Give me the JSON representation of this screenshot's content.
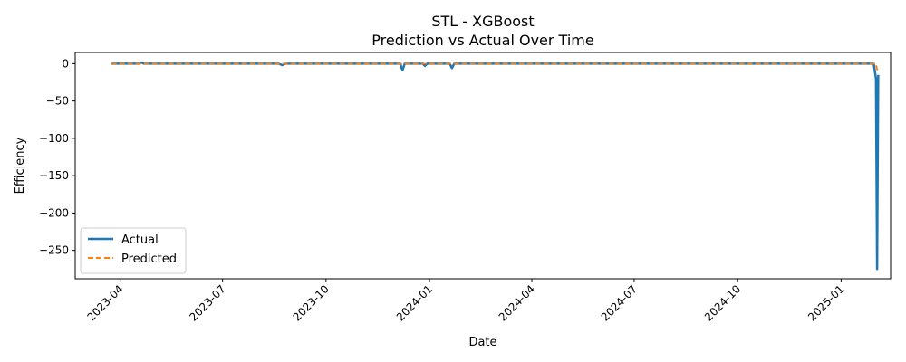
{
  "chart_data": {
    "type": "line",
    "title": "STL - XGBoost",
    "subtitle": "Prediction vs Actual Over Time",
    "xlabel": "Date",
    "ylabel": "Efficiency",
    "x_range": [
      "2023-02-20",
      "2025-02-14"
    ],
    "ylim": [
      -288,
      15
    ],
    "x_ticks": [
      "2023-04",
      "2023-07",
      "2023-10",
      "2024-01",
      "2024-04",
      "2024-07",
      "2024-10",
      "2025-01"
    ],
    "y_ticks": [
      0,
      -50,
      -100,
      -150,
      -200,
      -250
    ],
    "grid": false,
    "legend_position": "lower-left",
    "series": [
      {
        "name": "Actual",
        "color": "#1f77b4",
        "style": "solid",
        "points": [
          [
            "2023-03-24",
            0
          ],
          [
            "2023-04-18",
            0
          ],
          [
            "2023-04-20",
            1.5
          ],
          [
            "2023-04-22",
            0
          ],
          [
            "2023-08-20",
            0
          ],
          [
            "2023-08-23",
            -2
          ],
          [
            "2023-08-26",
            0
          ],
          [
            "2023-12-06",
            0
          ],
          [
            "2023-12-08",
            -9
          ],
          [
            "2023-12-10",
            0
          ],
          [
            "2023-12-26",
            0
          ],
          [
            "2023-12-28",
            -3
          ],
          [
            "2023-12-30",
            0
          ],
          [
            "2024-01-19",
            0
          ],
          [
            "2024-01-21",
            -6
          ],
          [
            "2024-01-23",
            0
          ],
          [
            "2025-01-30",
            0
          ],
          [
            "2025-02-01",
            -20
          ],
          [
            "2025-02-02",
            -275
          ],
          [
            "2025-02-03",
            -15
          ]
        ]
      },
      {
        "name": "Predicted",
        "color": "#ff7f0e",
        "style": "dashed",
        "points": [
          [
            "2023-03-24",
            0
          ],
          [
            "2025-02-01",
            0
          ],
          [
            "2025-02-02",
            -8
          ],
          [
            "2025-02-03",
            -5
          ]
        ]
      }
    ]
  }
}
